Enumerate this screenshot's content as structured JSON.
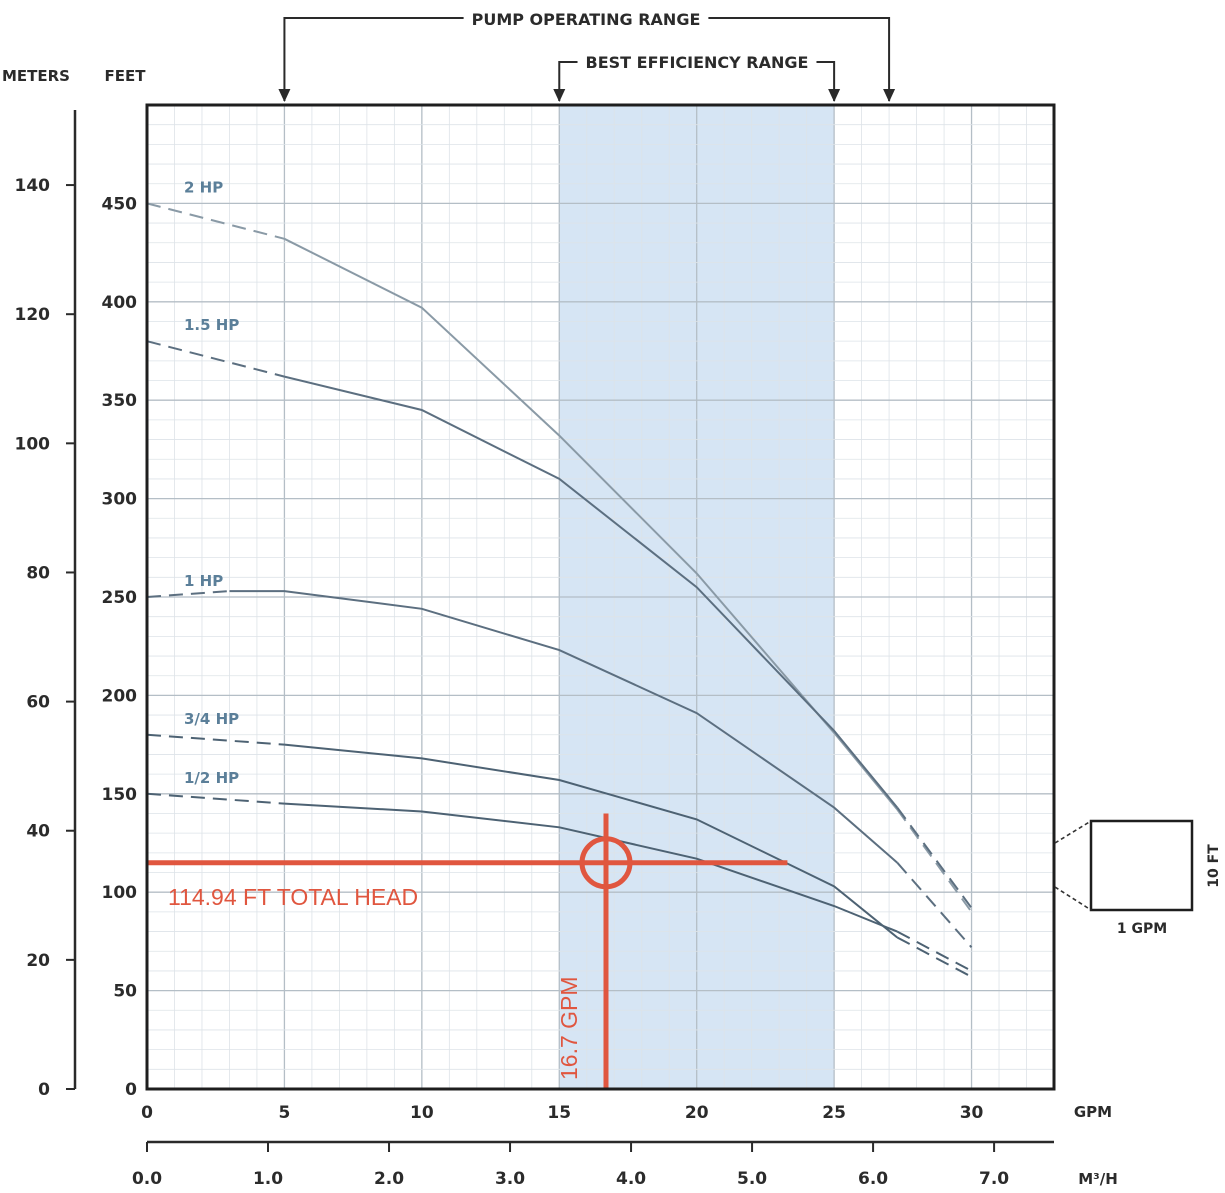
{
  "chart_data": {
    "type": "line",
    "title": "",
    "xlabel": "GPM",
    "x2label": "M³/H",
    "ylabel": "FEET",
    "y2label": "METERS",
    "xlim": [
      0,
      33
    ],
    "ylim": [
      0,
      500
    ],
    "x_ticks": [
      0,
      5,
      10,
      15,
      20,
      25,
      30
    ],
    "x_tick_labels": [
      "0",
      "5",
      "10",
      "15",
      "20",
      "25",
      "30"
    ],
    "m3h_ticks": [
      {
        "value": 0.0,
        "label": "0.0"
      },
      {
        "value": 1.0,
        "label": "1.0"
      },
      {
        "value": 2.0,
        "label": "2.0"
      },
      {
        "value": 3.0,
        "label": "3.0"
      },
      {
        "value": 4.0,
        "label": "4.0"
      },
      {
        "value": 5.0,
        "label": "5.0"
      },
      {
        "value": 6.0,
        "label": "6.0"
      },
      {
        "value": 7.0,
        "label": "7.0"
      }
    ],
    "feet_ticks": [
      {
        "value": 0,
        "label": "0"
      },
      {
        "value": 50,
        "label": "50"
      },
      {
        "value": 100,
        "label": "100"
      },
      {
        "value": 150,
        "label": "150"
      },
      {
        "value": 200,
        "label": "200"
      },
      {
        "value": 250,
        "label": "250"
      },
      {
        "value": 300,
        "label": "300"
      },
      {
        "value": 350,
        "label": "350"
      },
      {
        "value": 400,
        "label": "400"
      },
      {
        "value": 450,
        "label": "450"
      }
    ],
    "meters_ticks": [
      {
        "value": 0,
        "label": "0"
      },
      {
        "value": 20,
        "label": "20"
      },
      {
        "value": 40,
        "label": "40"
      },
      {
        "value": 60,
        "label": "60"
      },
      {
        "value": 80,
        "label": "80"
      },
      {
        "value": 100,
        "label": "100"
      },
      {
        "value": 120,
        "label": "120"
      },
      {
        "value": 140,
        "label": "140"
      }
    ],
    "grid": true,
    "grid_step": {
      "x": 1,
      "y": 10
    },
    "bands": [
      {
        "name": "BEST EFFICIENCY RANGE",
        "x_start": 15,
        "x_end": 25
      }
    ],
    "ranges": [
      {
        "label": "PUMP OPERATING RANGE",
        "x_start": 5,
        "x_end": 27
      },
      {
        "label": "BEST EFFICIENCY RANGE",
        "x_start": 15,
        "x_end": 25
      }
    ],
    "series": [
      {
        "name": "2 HP",
        "color": "#8a9aa6",
        "dash_until": 5,
        "x": [
          0,
          5,
          10,
          15,
          20,
          25,
          27.3,
          30
        ],
        "y": [
          450,
          432,
          397,
          332,
          262,
          181,
          142,
          90
        ]
      },
      {
        "name": "1.5 HP",
        "color": "#5c6f80",
        "dash_until": 5,
        "x": [
          0,
          5,
          10,
          15,
          20,
          25,
          27.3,
          30
        ],
        "y": [
          380,
          362,
          345,
          310,
          255,
          182,
          143,
          92
        ]
      },
      {
        "name": "1 HP",
        "color": "#5c6f80",
        "dash_until": 3,
        "x": [
          0,
          3,
          5,
          10,
          15,
          20,
          25,
          27.3,
          30
        ],
        "y": [
          250,
          253,
          253,
          244,
          223,
          191,
          143,
          115,
          72
        ]
      },
      {
        "name": "3/4 HP",
        "color": "#4d6273",
        "dash_until": 5,
        "x": [
          0,
          5,
          10,
          15,
          20,
          25,
          27.3,
          30
        ],
        "y": [
          180,
          175,
          168,
          157,
          137,
          103,
          77,
          57
        ]
      },
      {
        "name": "1/2 HP",
        "color": "#4d6273",
        "dash_until": 5,
        "x": [
          0,
          5,
          10,
          15,
          20,
          25,
          27.3,
          30
        ],
        "y": [
          150,
          145,
          141,
          133,
          117,
          93,
          80,
          60
        ]
      }
    ],
    "annotations": [
      {
        "id": "head",
        "text": "114.94 FT TOTAL HEAD",
        "y": 114.94,
        "x_end": 23.3
      },
      {
        "id": "flow",
        "text": "16.7 GPM",
        "x": 16.7,
        "y_end": 140
      },
      {
        "id": "operating-point",
        "x": 16.7,
        "y": 114.94
      }
    ],
    "scale_key": {
      "width_label": "1 GPM",
      "height_label": "10 FT"
    }
  }
}
